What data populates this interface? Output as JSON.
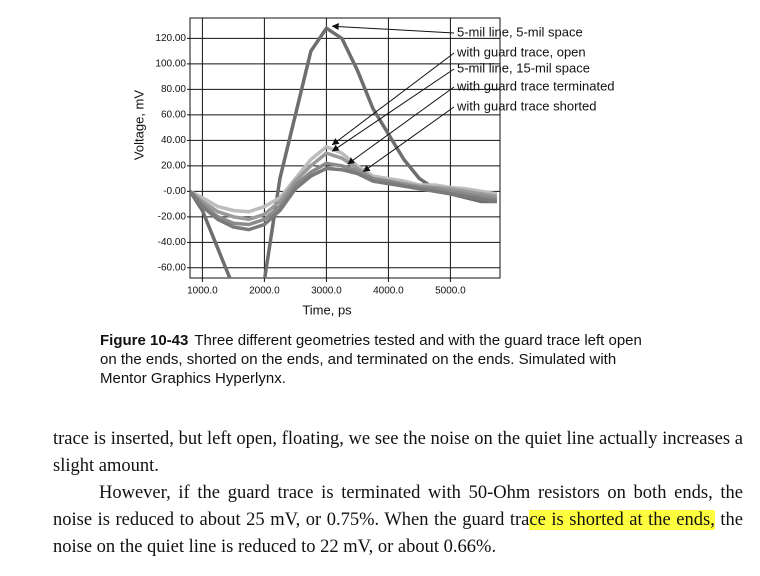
{
  "chart_data": {
    "type": "line",
    "y_label": "Voltage, mV",
    "x_label": "Time, ps",
    "x": [
      800,
      1000,
      1250,
      1500,
      1750,
      2000,
      2250,
      2500,
      2750,
      3000,
      3250,
      3500,
      3750,
      4000,
      4250,
      4500,
      4750,
      5000,
      5250,
      5500,
      5750
    ],
    "series": [
      {
        "name": "5-mil line, 5-mil space",
        "color": "#6e6e6e",
        "values": [
          0,
          -15,
          -45,
          -75,
          -90,
          -70,
          10,
          60,
          110,
          128,
          120,
          95,
          65,
          45,
          25,
          10,
          2,
          -2,
          -5,
          -8,
          -8
        ]
      },
      {
        "name": "with guard trace, open",
        "color": "#bdbdbd",
        "values": [
          0,
          -5,
          -12,
          -15,
          -16,
          -12,
          -5,
          10,
          25,
          35,
          30,
          20,
          12,
          10,
          8,
          5,
          5,
          3,
          2,
          0,
          -2
        ]
      },
      {
        "name": "5-mil line, 15-mil space",
        "color": "#9a9a9a",
        "values": [
          0,
          -8,
          -16,
          -20,
          -22,
          -18,
          -8,
          8,
          20,
          30,
          26,
          18,
          10,
          8,
          6,
          4,
          3,
          2,
          0,
          -2,
          -4
        ]
      },
      {
        "name": "with guard trace terminated",
        "color": "#8a8a8a",
        "values": [
          0,
          -10,
          -20,
          -25,
          -26,
          -22,
          -12,
          5,
          15,
          22,
          20,
          16,
          10,
          8,
          5,
          3,
          2,
          0,
          -2,
          -4,
          -6
        ]
      },
      {
        "name": "with guard trace shorted",
        "color": "#7a7a7a",
        "values": [
          0,
          -12,
          -22,
          -28,
          -30,
          -26,
          -15,
          2,
          12,
          18,
          17,
          14,
          8,
          6,
          4,
          2,
          0,
          -2,
          -4,
          -6,
          -8
        ]
      }
    ],
    "xlim": [
      800,
      5800
    ],
    "ylim": [
      -68,
      136
    ],
    "xticks": [
      {
        "value": 1000,
        "label": "1000.0"
      },
      {
        "value": 2000,
        "label": "2000.0"
      },
      {
        "value": 3000,
        "label": "3000.0"
      },
      {
        "value": 4000,
        "label": "4000.0"
      },
      {
        "value": 5000,
        "label": "5000.0"
      }
    ],
    "yticks": [
      {
        "value": 120,
        "label": "120.00"
      },
      {
        "value": 100,
        "label": "100.00"
      },
      {
        "value": 80,
        "label": "80.00"
      },
      {
        "value": 60,
        "label": "60.00"
      },
      {
        "value": 40,
        "label": "40.00"
      },
      {
        "value": 20,
        "label": "20.00"
      },
      {
        "value": 0,
        "label": "-0.00"
      },
      {
        "value": -20,
        "label": "-20.00"
      },
      {
        "value": -40,
        "label": "-40.00"
      },
      {
        "value": -60,
        "label": "-60.00"
      }
    ],
    "grid": true
  },
  "caption": {
    "label": "Figure 10-43",
    "text": "Three different geometries tested and with the guard trace left open on the ends, shorted on the ends, and terminated on the ends. Simulated with Mentor Graphics Hyperlynx."
  },
  "body": {
    "paragraph_1": "trace is inserted, but left open, floating, we see the noise on the quiet line actually increases a slight amount.",
    "paragraph_2": [
      "However, if the guard trace is terminated with 50-Ohm resistors on both ends, the noise is reduced to about 25 mV, or 0.75%. When the guard tra",
      "ce is shorted at the ends,",
      " the noise on the quiet line is reduced to 22 mV, or about 0.66%."
    ]
  }
}
